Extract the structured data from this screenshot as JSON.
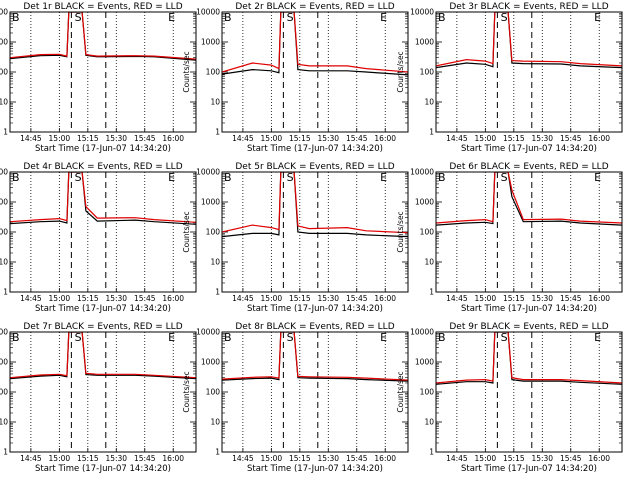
{
  "figure": {
    "x_tick_labels": [
      "14:45",
      "15:00",
      "15:15",
      "15:30",
      "15:45",
      "16:00"
    ],
    "x_axis_label": "Start Time (17-Jun-07 14:34:20)",
    "y_axis_label": "Counts/sec",
    "y_tick_labels": [
      "1",
      "10",
      "100",
      "1000",
      "10000"
    ],
    "interval_markers": [
      "B",
      "S",
      "E"
    ]
  },
  "chart_data": [
    {
      "type": "line",
      "title": "Det 1r BLACK = Events, RED = LLD",
      "xlabel": "Start Time (17-Jun-07 14:34:20)",
      "ylabel": "Counts/sec",
      "yscale": "log",
      "ylim": [
        1,
        10000
      ],
      "xlim": [
        "14:34",
        "16:12"
      ],
      "grid": "dotted verticals",
      "x": [
        "14:34",
        "14:50",
        "15:00",
        "15:04",
        "15:05",
        "15:12",
        "15:14",
        "15:20",
        "15:40",
        "15:50",
        "16:12"
      ],
      "series": [
        {
          "name": "Events",
          "color": "#000000",
          "values": [
            280,
            350,
            360,
            320,
            10000,
            10000,
            360,
            320,
            330,
            320,
            250
          ]
        },
        {
          "name": "LLD",
          "color": "#e00000",
          "values": [
            300,
            380,
            390,
            340,
            10000,
            10000,
            380,
            340,
            350,
            340,
            270
          ]
        }
      ]
    },
    {
      "type": "line",
      "title": "Det 2r BLACK = Events, RED = LLD",
      "xlabel": "Start Time (17-Jun-07 14:34:20)",
      "ylabel": "Counts/sec",
      "yscale": "log",
      "ylim": [
        1,
        10000
      ],
      "xlim": [
        "14:34",
        "16:12"
      ],
      "grid": "dotted verticals",
      "x": [
        "14:34",
        "14:50",
        "15:00",
        "15:04",
        "15:05",
        "15:12",
        "15:14",
        "15:20",
        "15:40",
        "15:50",
        "16:12"
      ],
      "series": [
        {
          "name": "Events",
          "color": "#000000",
          "values": [
            85,
            120,
            110,
            95,
            10000,
            10000,
            120,
            110,
            110,
            100,
            80
          ]
        },
        {
          "name": "LLD",
          "color": "#e00000",
          "values": [
            100,
            200,
            170,
            130,
            10000,
            10000,
            180,
            160,
            160,
            130,
            100
          ]
        }
      ]
    },
    {
      "type": "line",
      "title": "Det 3r BLACK = Events, RED = LLD",
      "xlabel": "Start Time (17-Jun-07 14:34:20)",
      "ylabel": "Counts/sec",
      "yscale": "log",
      "ylim": [
        1,
        10000
      ],
      "xlim": [
        "14:34",
        "16:12"
      ],
      "grid": "dotted verticals",
      "x": [
        "14:34",
        "14:50",
        "15:00",
        "15:04",
        "15:05",
        "15:12",
        "15:14",
        "15:20",
        "15:40",
        "15:50",
        "16:12"
      ],
      "series": [
        {
          "name": "Events",
          "color": "#000000",
          "values": [
            140,
            200,
            180,
            150,
            10000,
            10000,
            200,
            190,
            185,
            160,
            140
          ]
        },
        {
          "name": "LLD",
          "color": "#e00000",
          "values": [
            160,
            260,
            230,
            190,
            10000,
            10000,
            240,
            230,
            220,
            190,
            160
          ]
        }
      ]
    },
    {
      "type": "line",
      "title": "Det 4r BLACK = Events, RED = LLD",
      "xlabel": "Start Time (17-Jun-07 14:34:20)",
      "ylabel": "Counts/sec",
      "yscale": "log",
      "ylim": [
        1,
        10000
      ],
      "xlim": [
        "14:34",
        "16:12"
      ],
      "grid": "dotted verticals",
      "x": [
        "14:34",
        "14:50",
        "15:00",
        "15:04",
        "15:05",
        "15:12",
        "15:14",
        "15:20",
        "15:40",
        "15:50",
        "16:12"
      ],
      "series": [
        {
          "name": "Events",
          "color": "#000000",
          "values": [
            190,
            220,
            230,
            200,
            10000,
            10000,
            500,
            230,
            250,
            220,
            180
          ]
        },
        {
          "name": "LLD",
          "color": "#e00000",
          "values": [
            220,
            260,
            280,
            240,
            10000,
            10000,
            700,
            290,
            300,
            260,
            210
          ]
        }
      ]
    },
    {
      "type": "line",
      "title": "Det 5r BLACK = Events, RED = LLD",
      "xlabel": "Start Time (17-Jun-07 14:34:20)",
      "ylabel": "Counts/sec",
      "yscale": "log",
      "ylim": [
        1,
        10000
      ],
      "xlim": [
        "14:34",
        "16:12"
      ],
      "grid": "dotted verticals",
      "x": [
        "14:34",
        "14:50",
        "15:00",
        "15:04",
        "15:05",
        "15:12",
        "15:14",
        "15:20",
        "15:40",
        "15:50",
        "16:12"
      ],
      "series": [
        {
          "name": "Events",
          "color": "#000000",
          "values": [
            70,
            90,
            90,
            80,
            10000,
            10000,
            100,
            90,
            90,
            80,
            70
          ]
        },
        {
          "name": "LLD",
          "color": "#e00000",
          "values": [
            100,
            170,
            140,
            120,
            10000,
            10000,
            160,
            130,
            140,
            110,
            95
          ]
        }
      ]
    },
    {
      "type": "line",
      "title": "Det 6r BLACK = Events, RED = LLD",
      "xlabel": "Start Time (17-Jun-07 14:34:20)",
      "ylabel": "Counts/sec",
      "yscale": "log",
      "ylim": [
        1,
        10000
      ],
      "xlim": [
        "14:34",
        "16:12"
      ],
      "grid": "dotted verticals",
      "x": [
        "14:34",
        "14:50",
        "15:00",
        "15:04",
        "15:05",
        "15:12",
        "15:14",
        "15:20",
        "15:40",
        "15:50",
        "16:12"
      ],
      "series": [
        {
          "name": "Events",
          "color": "#000000",
          "values": [
            170,
            200,
            210,
            190,
            10000,
            10000,
            1500,
            220,
            230,
            200,
            170
          ]
        },
        {
          "name": "LLD",
          "color": "#e00000",
          "values": [
            200,
            240,
            260,
            220,
            10000,
            10000,
            2500,
            260,
            270,
            230,
            200
          ]
        }
      ]
    },
    {
      "type": "line",
      "title": "Det 7r BLACK = Events, RED = LLD",
      "xlabel": "Start Time (17-Jun-07 14:34:20)",
      "ylabel": "Counts/sec",
      "yscale": "log",
      "ylim": [
        1,
        10000
      ],
      "xlim": [
        "14:34",
        "16:12"
      ],
      "grid": "dotted verticals",
      "x": [
        "14:34",
        "14:50",
        "15:00",
        "15:04",
        "15:05",
        "15:12",
        "15:14",
        "15:20",
        "15:40",
        "15:50",
        "16:12"
      ],
      "series": [
        {
          "name": "Events",
          "color": "#000000",
          "values": [
            280,
            340,
            360,
            320,
            10000,
            10000,
            380,
            360,
            360,
            340,
            280
          ]
        },
        {
          "name": "LLD",
          "color": "#e00000",
          "values": [
            300,
            370,
            390,
            350,
            10000,
            10000,
            420,
            390,
            390,
            360,
            300
          ]
        }
      ]
    },
    {
      "type": "line",
      "title": "Det 8r BLACK = Events, RED = LLD",
      "xlabel": "Start Time (17-Jun-07 14:34:20)",
      "ylabel": "Counts/sec",
      "yscale": "log",
      "ylim": [
        1,
        10000
      ],
      "xlim": [
        "14:34",
        "16:12"
      ],
      "grid": "dotted verticals",
      "x": [
        "14:34",
        "14:50",
        "15:00",
        "15:04",
        "15:05",
        "15:12",
        "15:14",
        "15:20",
        "15:40",
        "15:50",
        "16:12"
      ],
      "series": [
        {
          "name": "Events",
          "color": "#000000",
          "values": [
            250,
            280,
            290,
            260,
            10000,
            10000,
            300,
            290,
            280,
            260,
            230
          ]
        },
        {
          "name": "LLD",
          "color": "#e00000",
          "values": [
            270,
            310,
            320,
            290,
            10000,
            10000,
            330,
            320,
            310,
            290,
            250
          ]
        }
      ]
    },
    {
      "type": "line",
      "title": "Det 9r BLACK = Events, RED = LLD",
      "xlabel": "Start Time (17-Jun-07 14:34:20)",
      "ylabel": "Counts/sec",
      "yscale": "log",
      "ylim": [
        1,
        10000
      ],
      "xlim": [
        "14:34",
        "16:12"
      ],
      "grid": "dotted verticals",
      "x": [
        "14:34",
        "14:50",
        "15:00",
        "15:04",
        "15:05",
        "15:12",
        "15:14",
        "15:20",
        "15:40",
        "15:50",
        "16:12"
      ],
      "series": [
        {
          "name": "Events",
          "color": "#000000",
          "values": [
            180,
            220,
            220,
            200,
            10000,
            10000,
            260,
            230,
            230,
            210,
            180
          ]
        },
        {
          "name": "LLD",
          "color": "#e00000",
          "values": [
            200,
            250,
            260,
            230,
            10000,
            10000,
            300,
            260,
            260,
            240,
            200
          ]
        }
      ]
    }
  ]
}
